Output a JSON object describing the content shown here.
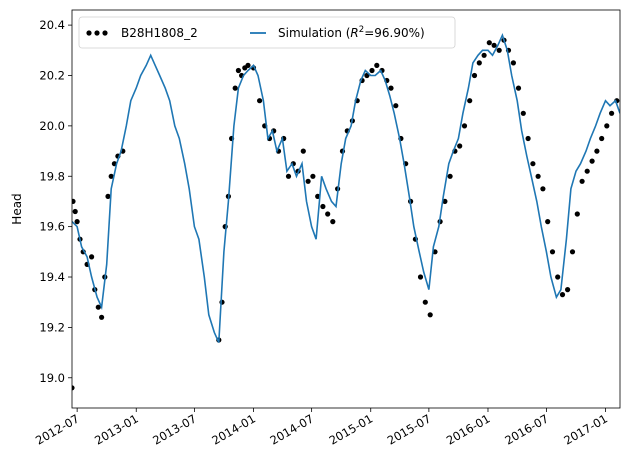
{
  "chart_data": {
    "type": "line",
    "ylabel": "Head",
    "xlabel": "",
    "ylim": [
      18.88,
      20.46
    ],
    "xlim": [
      "2012-06-15",
      "2017-02-15"
    ],
    "y_ticks": [
      19.0,
      19.2,
      19.4,
      19.6,
      19.8,
      20.0,
      20.2,
      20.4
    ],
    "y_tick_labels": [
      "19.0",
      "19.2",
      "19.4",
      "19.6",
      "19.8",
      "20.0",
      "20.2",
      "20.4"
    ],
    "x_ticks": [
      "2012-07-01",
      "2013-01-01",
      "2013-07-01",
      "2014-01-01",
      "2014-07-01",
      "2015-01-01",
      "2015-07-01",
      "2016-01-01",
      "2016-07-01",
      "2017-01-01"
    ],
    "x_tick_labels": [
      "2012-07",
      "2013-01",
      "2013-07",
      "2014-01",
      "2014-07",
      "2015-01",
      "2015-07",
      "2016-01",
      "2016-07",
      "2017-01"
    ],
    "legend_position": "top-left",
    "grid": false,
    "series": [
      {
        "name": "B28H1808_2",
        "kind": "scatter",
        "color": "#000000",
        "x": [
          "2012-06-15",
          "2012-06-18",
          "2012-06-25",
          "2012-07-01",
          "2012-07-10",
          "2012-07-20",
          "2012-08-01",
          "2012-08-15",
          "2012-08-25",
          "2012-09-05",
          "2012-09-15",
          "2012-09-25",
          "2012-10-05",
          "2012-10-15",
          "2012-10-25",
          "2012-11-05",
          "2012-11-20",
          "2013-09-15",
          "2013-09-25",
          "2013-10-05",
          "2013-10-15",
          "2013-10-25",
          "2013-11-05",
          "2013-11-15",
          "2013-11-25",
          "2013-12-05",
          "2013-12-15",
          "2014-01-01",
          "2014-01-20",
          "2014-02-05",
          "2014-02-20",
          "2014-03-05",
          "2014-03-20",
          "2014-04-05",
          "2014-04-20",
          "2014-05-05",
          "2014-05-20",
          "2014-06-05",
          "2014-06-20",
          "2014-07-05",
          "2014-07-20",
          "2014-08-05",
          "2014-08-20",
          "2014-09-05",
          "2014-09-20",
          "2014-10-05",
          "2014-10-20",
          "2014-11-05",
          "2014-11-20",
          "2014-12-05",
          "2014-12-20",
          "2015-01-05",
          "2015-01-20",
          "2015-02-05",
          "2015-02-20",
          "2015-03-05",
          "2015-03-20",
          "2015-04-05",
          "2015-04-20",
          "2015-05-05",
          "2015-05-20",
          "2015-06-05",
          "2015-06-20",
          "2015-07-05",
          "2015-07-20",
          "2015-08-05",
          "2015-08-20",
          "2015-09-05",
          "2015-09-20",
          "2015-10-05",
          "2015-10-20",
          "2015-11-05",
          "2015-11-20",
          "2015-12-05",
          "2015-12-20",
          "2016-01-05",
          "2016-01-20",
          "2016-02-05",
          "2016-02-20",
          "2016-03-05",
          "2016-03-20",
          "2016-04-05",
          "2016-04-20",
          "2016-05-05",
          "2016-05-20",
          "2016-06-05",
          "2016-06-20",
          "2016-07-05",
          "2016-07-20",
          "2016-08-05",
          "2016-08-20",
          "2016-09-05",
          "2016-09-20",
          "2016-10-05",
          "2016-10-20",
          "2016-11-05",
          "2016-11-20",
          "2016-12-05",
          "2016-12-20",
          "2017-01-05",
          "2017-01-20",
          "2017-02-05"
        ],
        "y": [
          18.96,
          19.7,
          19.66,
          19.62,
          19.55,
          19.5,
          19.45,
          19.48,
          19.35,
          19.28,
          19.24,
          19.4,
          19.72,
          19.8,
          19.85,
          19.88,
          19.9,
          19.15,
          19.3,
          19.6,
          19.72,
          19.95,
          20.15,
          20.22,
          20.2,
          20.23,
          20.24,
          20.23,
          20.1,
          20.0,
          19.95,
          19.98,
          19.9,
          19.95,
          19.8,
          19.85,
          19.82,
          19.9,
          19.78,
          19.8,
          19.72,
          19.68,
          19.65,
          19.62,
          19.75,
          19.9,
          19.98,
          20.02,
          20.1,
          20.18,
          20.2,
          20.22,
          20.24,
          20.22,
          20.18,
          20.15,
          20.08,
          19.95,
          19.85,
          19.7,
          19.55,
          19.4,
          19.3,
          19.25,
          19.5,
          19.62,
          19.7,
          19.8,
          19.9,
          19.92,
          20.0,
          20.1,
          20.2,
          20.25,
          20.28,
          20.33,
          20.32,
          20.3,
          20.34,
          20.3,
          20.25,
          20.15,
          20.05,
          19.95,
          19.85,
          19.8,
          19.75,
          19.62,
          19.5,
          19.4,
          19.33,
          19.35,
          19.5,
          19.65,
          19.78,
          19.82,
          19.86,
          19.9,
          19.95,
          20.0,
          20.05,
          20.1
        ]
      },
      {
        "name": "Simulation ($R^2$=96.90%)",
        "legend_label": "Simulation (",
        "legend_label_sup_base": "R",
        "legend_label_sup": "2",
        "legend_label_tail": "=96.90%)",
        "kind": "line",
        "color": "#1f77b4",
        "x": [
          "2012-06-15",
          "2012-07-01",
          "2012-07-15",
          "2012-08-01",
          "2012-08-15",
          "2012-09-01",
          "2012-09-15",
          "2012-10-01",
          "2012-10-15",
          "2012-11-01",
          "2012-11-15",
          "2012-12-01",
          "2012-12-15",
          "2013-01-01",
          "2013-01-15",
          "2013-02-01",
          "2013-02-15",
          "2013-03-01",
          "2013-03-15",
          "2013-04-01",
          "2013-04-15",
          "2013-05-01",
          "2013-05-15",
          "2013-06-01",
          "2013-06-15",
          "2013-07-01",
          "2013-07-15",
          "2013-08-01",
          "2013-08-15",
          "2013-09-01",
          "2013-09-15",
          "2013-10-01",
          "2013-10-15",
          "2013-11-01",
          "2013-11-15",
          "2013-12-01",
          "2013-12-15",
          "2014-01-01",
          "2014-01-15",
          "2014-02-01",
          "2014-02-15",
          "2014-03-01",
          "2014-03-15",
          "2014-04-01",
          "2014-04-15",
          "2014-05-01",
          "2014-05-15",
          "2014-06-01",
          "2014-06-15",
          "2014-07-01",
          "2014-07-15",
          "2014-08-01",
          "2014-08-15",
          "2014-09-01",
          "2014-09-15",
          "2014-10-01",
          "2014-10-15",
          "2014-11-01",
          "2014-11-15",
          "2014-12-01",
          "2014-12-15",
          "2015-01-01",
          "2015-01-15",
          "2015-02-01",
          "2015-02-15",
          "2015-03-01",
          "2015-03-15",
          "2015-04-01",
          "2015-04-15",
          "2015-05-01",
          "2015-05-15",
          "2015-06-01",
          "2015-06-15",
          "2015-07-01",
          "2015-07-15",
          "2015-08-01",
          "2015-08-15",
          "2015-09-01",
          "2015-09-15",
          "2015-10-01",
          "2015-10-15",
          "2015-11-01",
          "2015-11-15",
          "2015-12-01",
          "2015-12-15",
          "2016-01-01",
          "2016-01-15",
          "2016-02-01",
          "2016-02-15",
          "2016-03-01",
          "2016-03-15",
          "2016-04-01",
          "2016-04-15",
          "2016-05-01",
          "2016-05-15",
          "2016-06-01",
          "2016-06-15",
          "2016-07-01",
          "2016-07-15",
          "2016-08-01",
          "2016-08-15",
          "2016-09-01",
          "2016-09-15",
          "2016-10-01",
          "2016-10-15",
          "2016-11-01",
          "2016-11-15",
          "2016-12-01",
          "2016-12-15",
          "2017-01-01",
          "2017-01-15",
          "2017-02-01",
          "2017-02-15"
        ],
        "y": [
          19.62,
          19.6,
          19.52,
          19.48,
          19.4,
          19.32,
          19.28,
          19.45,
          19.75,
          19.85,
          19.9,
          20.0,
          20.1,
          20.15,
          20.2,
          20.24,
          20.28,
          20.24,
          20.2,
          20.15,
          20.1,
          20.0,
          19.95,
          19.85,
          19.75,
          19.6,
          19.55,
          19.4,
          19.25,
          19.18,
          19.14,
          19.5,
          19.7,
          20.0,
          20.15,
          20.2,
          20.22,
          20.24,
          20.2,
          20.1,
          19.95,
          19.98,
          19.9,
          19.95,
          19.82,
          19.85,
          19.8,
          19.85,
          19.7,
          19.6,
          19.55,
          19.8,
          19.75,
          19.7,
          19.68,
          19.85,
          19.95,
          20.0,
          20.1,
          20.18,
          20.22,
          20.2,
          20.2,
          20.22,
          20.18,
          20.12,
          20.05,
          19.95,
          19.85,
          19.72,
          19.6,
          19.5,
          19.42,
          19.35,
          19.52,
          19.6,
          19.72,
          19.85,
          19.9,
          19.95,
          20.05,
          20.15,
          20.25,
          20.28,
          20.3,
          20.3,
          20.28,
          20.32,
          20.36,
          20.3,
          20.2,
          20.1,
          19.98,
          19.88,
          19.8,
          19.7,
          19.6,
          19.5,
          19.4,
          19.32,
          19.35,
          19.55,
          19.75,
          19.82,
          19.85,
          19.9,
          19.95,
          20.0,
          20.05,
          20.1,
          20.08,
          20.1,
          20.05
        ]
      }
    ]
  }
}
